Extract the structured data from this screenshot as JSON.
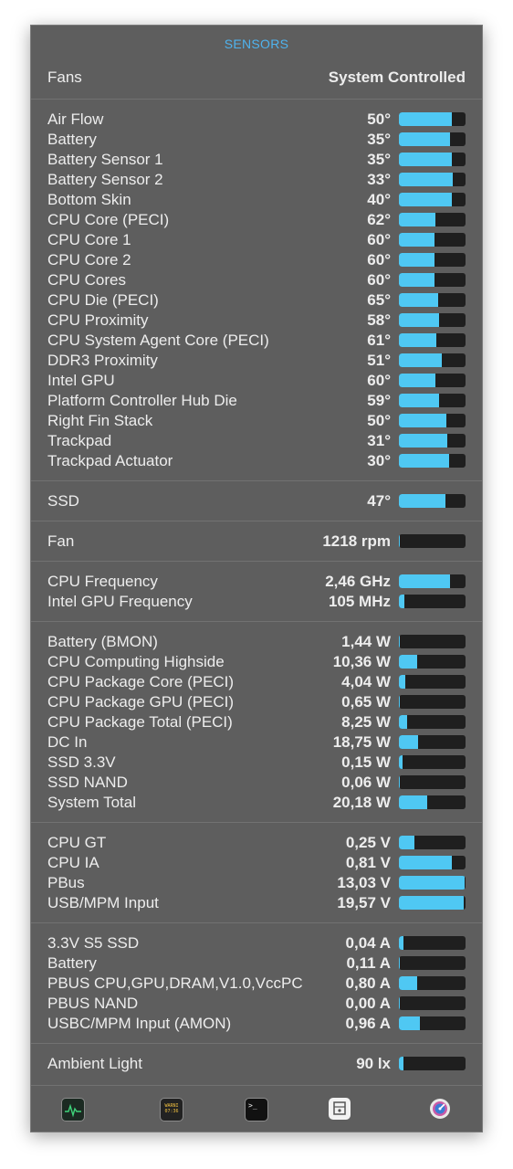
{
  "header": {
    "title": "SENSORS"
  },
  "fans": {
    "label": "Fans",
    "mode": "System Controlled"
  },
  "sections": [
    {
      "name": "temperatures",
      "rows": [
        {
          "label": "Air Flow",
          "value": "50°",
          "level": 0.79
        },
        {
          "label": "Battery",
          "value": "35°",
          "level": 0.77
        },
        {
          "label": "Battery Sensor 1",
          "value": "35°",
          "level": 0.79
        },
        {
          "label": "Battery Sensor 2",
          "value": "33°",
          "level": 0.81
        },
        {
          "label": "Bottom Skin",
          "value": "40°",
          "level": 0.79
        },
        {
          "label": "CPU Core (PECI)",
          "value": "62°",
          "level": 0.55
        },
        {
          "label": "CPU Core 1",
          "value": "60°",
          "level": 0.53
        },
        {
          "label": "CPU Core 2",
          "value": "60°",
          "level": 0.53
        },
        {
          "label": "CPU Cores",
          "value": "60°",
          "level": 0.53
        },
        {
          "label": "CPU Die (PECI)",
          "value": "65°",
          "level": 0.59
        },
        {
          "label": "CPU Proximity",
          "value": "58°",
          "level": 0.6
        },
        {
          "label": "CPU System Agent Core (PECI)",
          "value": "61°",
          "level": 0.56
        },
        {
          "label": "DDR3 Proximity",
          "value": "51°",
          "level": 0.64
        },
        {
          "label": "Intel GPU",
          "value": "60°",
          "level": 0.55
        },
        {
          "label": "Platform Controller Hub Die",
          "value": "59°",
          "level": 0.6
        },
        {
          "label": "Right Fin Stack",
          "value": "50°",
          "level": 0.71
        },
        {
          "label": "Trackpad",
          "value": "31°",
          "level": 0.73
        },
        {
          "label": "Trackpad Actuator",
          "value": "30°",
          "level": 0.75
        }
      ]
    },
    {
      "name": "ssd",
      "rows": [
        {
          "label": "SSD",
          "value": "47°",
          "level": 0.7
        }
      ]
    },
    {
      "name": "fan",
      "rows": [
        {
          "label": "Fan",
          "value": "1218 rpm",
          "level": 0.02
        }
      ]
    },
    {
      "name": "frequency",
      "rows": [
        {
          "label": "CPU Frequency",
          "value": "2,46 GHz",
          "level": 0.77
        },
        {
          "label": "Intel GPU Frequency",
          "value": "105 MHz",
          "level": 0.08
        }
      ]
    },
    {
      "name": "power",
      "rows": [
        {
          "label": "Battery (BMON)",
          "value": "1,44 W",
          "level": 0.02
        },
        {
          "label": "CPU Computing Highside",
          "value": "10,36 W",
          "level": 0.27
        },
        {
          "label": "CPU Package Core (PECI)",
          "value": "4,04 W",
          "level": 0.1
        },
        {
          "label": "CPU Package GPU (PECI)",
          "value": "0,65 W",
          "level": 0.02
        },
        {
          "label": "CPU Package Total (PECI)",
          "value": "8,25 W",
          "level": 0.12
        },
        {
          "label": "DC In",
          "value": "18,75 W",
          "level": 0.29
        },
        {
          "label": "SSD 3.3V",
          "value": "0,15 W",
          "level": 0.06
        },
        {
          "label": "SSD NAND",
          "value": "0,06 W",
          "level": 0.02
        },
        {
          "label": "System Total",
          "value": "20,18 W",
          "level": 0.42
        }
      ]
    },
    {
      "name": "voltage",
      "rows": [
        {
          "label": "CPU GT",
          "value": "0,25 V",
          "level": 0.23
        },
        {
          "label": "CPU IA",
          "value": "0,81 V",
          "level": 0.79
        },
        {
          "label": "PBus",
          "value": "13,03 V",
          "level": 0.98
        },
        {
          "label": "USB/MPM Input",
          "value": "19,57 V",
          "level": 0.97
        }
      ]
    },
    {
      "name": "current",
      "rows": [
        {
          "label": "3.3V S5 SSD",
          "value": "0,04 A",
          "level": 0.07
        },
        {
          "label": "Battery",
          "value": "0,11 A",
          "level": 0.02
        },
        {
          "label": "PBUS CPU,GPU,DRAM,V1.0,VccPC",
          "value": "0,80 A",
          "level": 0.27
        },
        {
          "label": "PBUS NAND",
          "value": "0,00 A",
          "level": 0.02
        },
        {
          "label": "USBC/MPM Input (AMON)",
          "value": "0,96 A",
          "level": 0.31
        }
      ]
    },
    {
      "name": "light",
      "rows": [
        {
          "label": "Ambient Light",
          "value": "90 lx",
          "level": 0.07
        }
      ]
    }
  ],
  "colors": {
    "accent": "#4fc8f3",
    "title": "#4fb3ee",
    "panel": "#5e5e5e",
    "track": "#1f1f1f"
  },
  "dock": [
    {
      "icon": "activity-monitor-icon",
      "text": ""
    },
    {
      "icon": "console-icon",
      "text": "WARNI\n07:36"
    },
    {
      "icon": "terminal-icon",
      "text": ">_"
    },
    {
      "icon": "system-information-icon",
      "text": ""
    },
    {
      "icon": "disk-utility-icon",
      "text": ""
    }
  ]
}
